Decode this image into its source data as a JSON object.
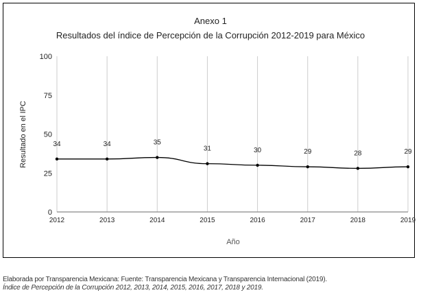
{
  "chart_data": {
    "type": "line",
    "title": "Anexo 1",
    "subtitle": "Resultados del índice de Percepción de la Corrupción 2012-2019 para México",
    "xlabel": "Año",
    "ylabel": "Resultado en el IPC",
    "categories": [
      "2012",
      "2013",
      "2014",
      "2015",
      "2016",
      "2017",
      "2018",
      "2019"
    ],
    "values": [
      34,
      34,
      35,
      31,
      30,
      29,
      28,
      29
    ],
    "ylim": [
      0,
      100
    ],
    "yticks": [
      0,
      25,
      50,
      75,
      100
    ],
    "grid": "vertical",
    "line_color": "#000000"
  },
  "caption": {
    "line1": "Elaborada por Transparencia Mexicana: Fuente: Transparencia Mexicana y Transparencia Internacional (2019).",
    "line2": "Índice de Percepción de la Corrupción 2012, 2013, 2014, 2015, 2016, 2017, 2018 y 2019."
  }
}
